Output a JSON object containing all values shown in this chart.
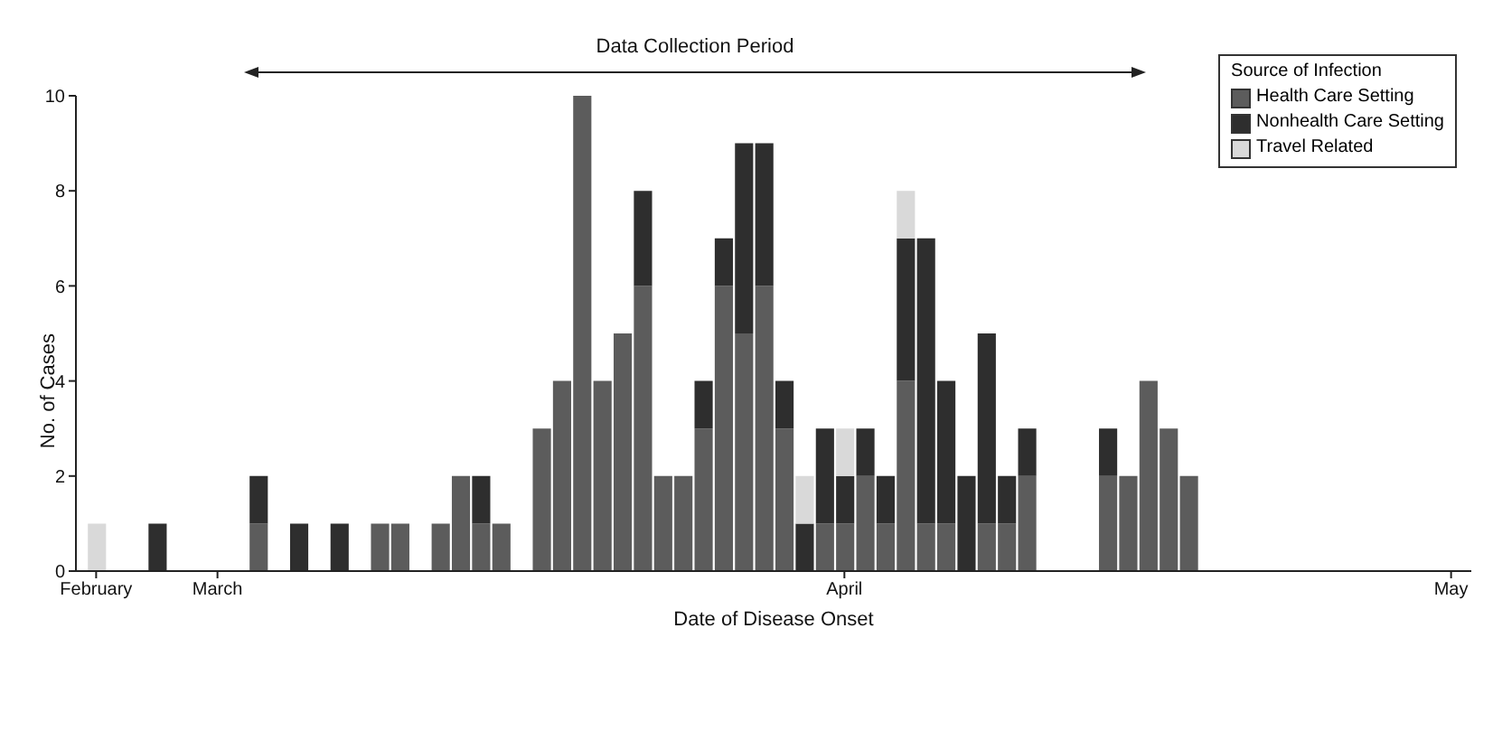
{
  "chart_data": {
    "type": "bar",
    "stacked": true,
    "xlabel": "Date of Disease Onset",
    "ylabel": "No. of Cases",
    "legend_title": "Source of Infection",
    "legend": "top right",
    "annotations": [
      "Data Collection Period"
    ],
    "x": [
      "--02-23",
      "--02-26",
      "--03-03",
      "--03-05",
      "--03-07",
      "--03-09",
      "--03-10",
      "--03-12",
      "--03-13",
      "--03-14",
      "--03-15",
      "--03-17",
      "--03-18",
      "--03-19",
      "--03-20",
      "--03-21",
      "--03-22",
      "--03-23",
      "--03-24",
      "--03-25",
      "--03-26",
      "--03-27",
      "--03-28",
      "--03-29",
      "--03-30",
      "--03-31",
      "--04-01",
      "--04-02",
      "--04-03",
      "--04-04",
      "--04-05",
      "--04-06",
      "--04-07",
      "--04-08",
      "--04-09",
      "--04-10",
      "--04-14",
      "--04-15",
      "--04-16",
      "--04-17",
      "--04-18"
    ],
    "series": [
      {
        "name": "Health Care Setting",
        "color": "#5c5c5c",
        "values": [
          null,
          null,
          1,
          null,
          null,
          1,
          1,
          1,
          2,
          1,
          1,
          3,
          4,
          10,
          4,
          5,
          6,
          2,
          2,
          3,
          6,
          5,
          6,
          3,
          null,
          1,
          1,
          2,
          1,
          4,
          1,
          1,
          null,
          1,
          1,
          2,
          2,
          2,
          4,
          3,
          2
        ]
      },
      {
        "name": "Nonhealth Care Setting",
        "color": "#2e2e2e",
        "values": [
          null,
          1,
          1,
          1,
          1,
          null,
          null,
          null,
          null,
          1,
          null,
          null,
          null,
          null,
          null,
          null,
          2,
          null,
          null,
          1,
          1,
          4,
          3,
          1,
          1,
          2,
          1,
          1,
          1,
          3,
          6,
          3,
          2,
          4,
          1,
          1,
          1,
          null,
          null,
          null,
          null
        ]
      },
      {
        "name": "Travel Related",
        "color": "#d9d9d9",
        "values": [
          1,
          null,
          null,
          null,
          null,
          null,
          null,
          null,
          null,
          null,
          null,
          null,
          null,
          null,
          null,
          null,
          null,
          null,
          null,
          null,
          null,
          null,
          null,
          null,
          1,
          null,
          1,
          null,
          null,
          1,
          null,
          null,
          null,
          null,
          null,
          null,
          null,
          null,
          null,
          null,
          null
        ]
      }
    ],
    "xlim": [
      "--02-22",
      "--05-02"
    ],
    "xticks": [
      {
        "value": "--02-23",
        "label": "February"
      },
      {
        "value": "--03-01",
        "label": "March"
      },
      {
        "value": "--04-01",
        "label": "April"
      },
      {
        "value": "--05-01",
        "label": "May"
      }
    ],
    "ylim": [
      0,
      10
    ],
    "yticks": [
      0,
      2,
      4,
      6,
      8,
      10
    ]
  }
}
